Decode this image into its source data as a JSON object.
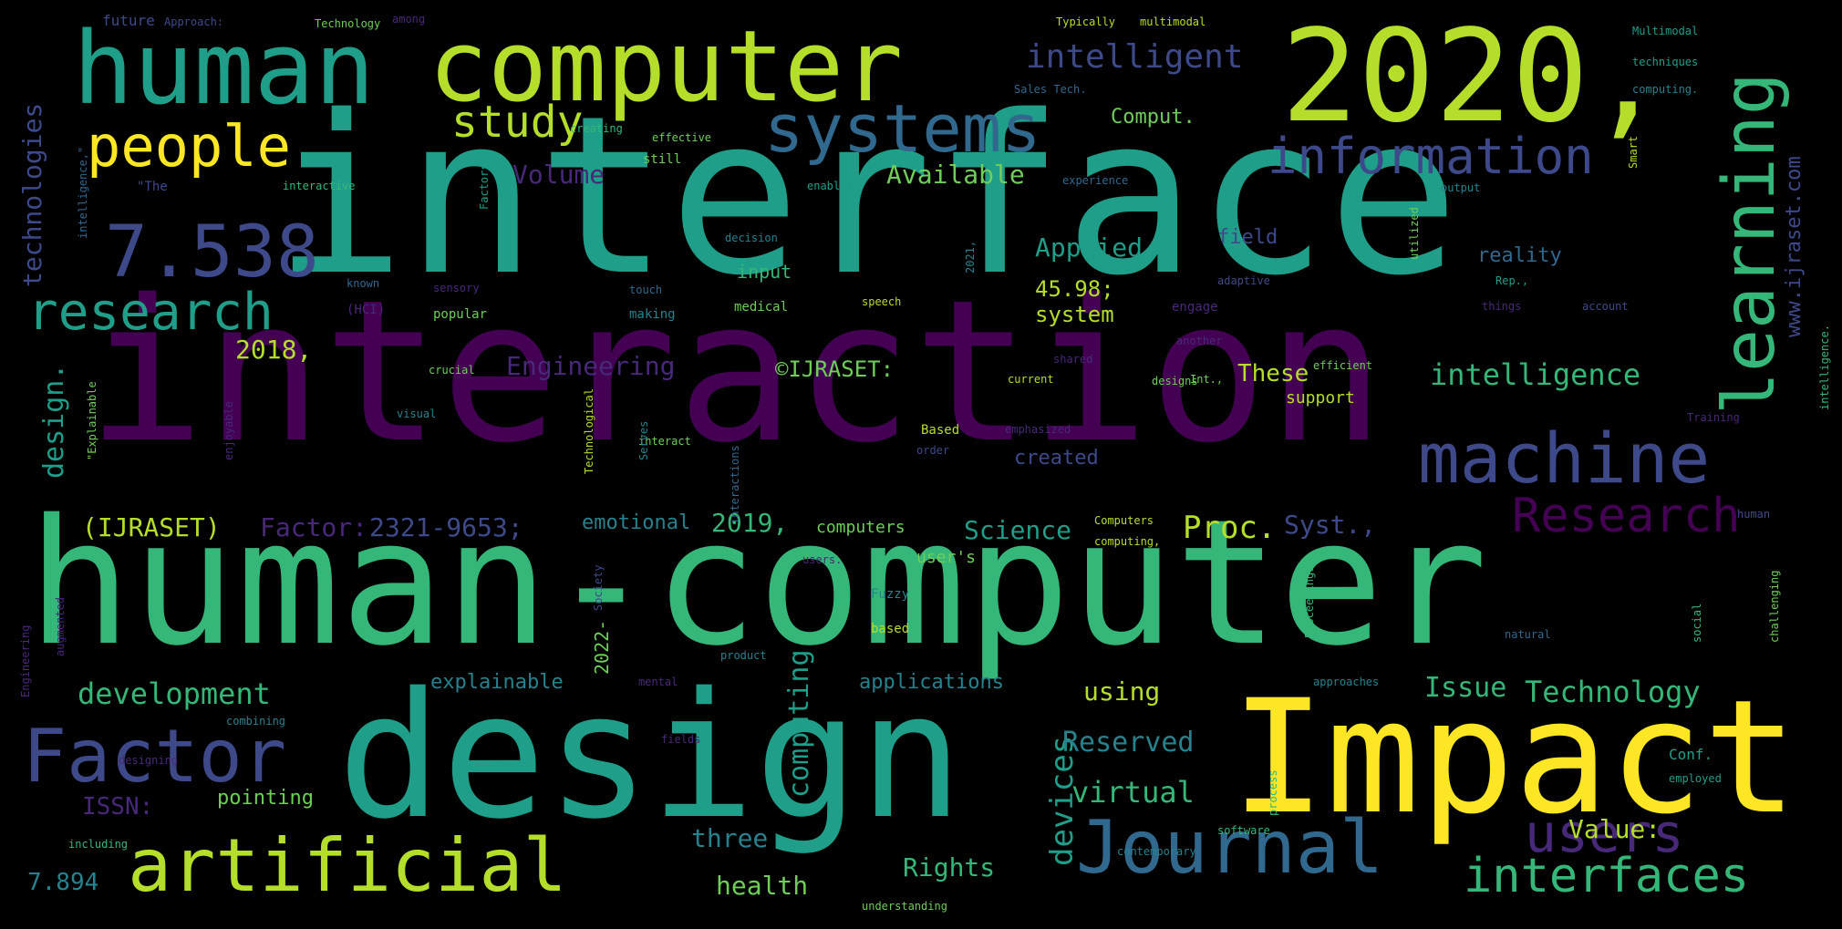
{
  "words": [
    "interface",
    "interaction",
    "human-computer",
    "design",
    "Impact",
    "2020,",
    "computer",
    "human",
    "systems",
    "machine",
    "information",
    "learning",
    "artificial",
    "Journal",
    "Factor",
    "people",
    "7.538",
    "research",
    "Research",
    "interfaces",
    "users",
    "study",
    "intelligent",
    "intelligence",
    "development",
    "Technology",
    "design.",
    "technologies",
    "www.ijraset.com",
    "Applied",
    "devices",
    "virtual",
    "computing",
    "Engineering",
    "Science",
    "Proc.",
    "Syst.,",
    "Issue",
    "(IJRASET)",
    "Factor:",
    "2321-9653;",
    "2019,",
    "computers",
    "2018,",
    "45.98;",
    "system",
    "Volume",
    "Available",
    "Comput.",
    "These",
    "Reserved",
    "Rights",
    "health",
    "three",
    "ISSN:",
    "7.894",
    "Value:",
    "using",
    "applications",
    "explainable",
    "emotional",
    "pointing",
    "2022-",
    "©IJRASET:",
    "created",
    "support",
    "future",
    "Approach:",
    "Technology",
    "among",
    "Typically",
    "multimodal",
    "Multimodal",
    "techniques",
    "computing.",
    "Sales Tech.",
    "field",
    "reality",
    "input",
    "adaptive",
    "medical",
    "speech",
    "engage",
    "efficient",
    "designs",
    "visual",
    "popular",
    "sensory",
    "making",
    "touch",
    "order",
    "Based",
    "emphasized",
    "\"The",
    "creating",
    "interactive",
    "still",
    "effective",
    "experience",
    "enables",
    "output",
    "decision",
    "Training",
    "human",
    "Computers",
    "computing,",
    "user's",
    "users.",
    "Fuzzy",
    "based",
    "product",
    "mental",
    "designing",
    "combining",
    "fields",
    "approaches",
    "natural",
    "social",
    "challenging",
    "contemporary",
    "software",
    "process",
    "employed",
    "Conf.",
    "including",
    "understanding",
    "crucial",
    "shared",
    "current",
    "Int.,",
    "another",
    "account",
    "things",
    "Rep.,",
    "utilized",
    "known",
    "(HCI)",
    "2021,",
    "interact",
    "enjoyable",
    "\"Explainable",
    "intelligence,\"",
    "Proceedings",
    "Technological",
    "Serves",
    "Engineering",
    "augmented",
    "Society",
    "interactions",
    "Smart",
    "Factors",
    "intelligence."
  ]
}
